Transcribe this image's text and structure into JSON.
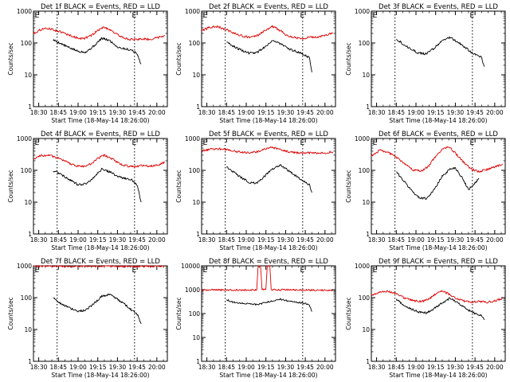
{
  "chart_data": [
    {
      "type": "line",
      "title": "Det 1f BLACK = Events, RED = LLD",
      "xlabel": "Start Time (18-May-14 18:26:00)",
      "ylabel": "Counts/sec",
      "x_ticks": [
        "18:30",
        "18:45",
        "19:00",
        "19:15",
        "19:30",
        "19:45",
        "20:00"
      ],
      "y_ticks": [
        "1",
        "10",
        "100",
        "1000"
      ],
      "ylim": [
        1,
        1000
      ],
      "y_scale": "log",
      "markers": [
        "E",
        "E"
      ],
      "series": [
        {
          "color": "#000000",
          "x": [
            "18:41",
            "18:46",
            "18:52",
            "19:00",
            "19:06",
            "19:12",
            "19:18",
            "19:24",
            "19:30",
            "19:36",
            "19:41",
            "19:45",
            "19:48"
          ],
          "y": [
            125,
            100,
            75,
            55,
            52,
            80,
            140,
            120,
            75,
            65,
            60,
            45,
            22
          ]
        },
        {
          "color": "#dd0000",
          "x": [
            "18:26",
            "18:32",
            "18:38",
            "18:45",
            "18:52",
            "18:58",
            "19:04",
            "19:10",
            "19:15",
            "19:20",
            "19:25",
            "19:30",
            "19:36",
            "19:42",
            "19:48",
            "19:55",
            "20:01",
            "20:06"
          ],
          "y": [
            200,
            270,
            285,
            235,
            185,
            150,
            135,
            170,
            250,
            315,
            255,
            180,
            140,
            125,
            135,
            130,
            150,
            175
          ]
        }
      ]
    },
    {
      "type": "line",
      "title": "Det 2f BLACK = Events, RED = LLD",
      "xlabel": "Start Time (18-May-14 18:26:00)",
      "ylabel": "Counts/sec",
      "x_ticks": [
        "18:30",
        "18:45",
        "19:00",
        "19:15",
        "19:30",
        "19:45",
        "20:00"
      ],
      "y_ticks": [
        "1",
        "10",
        "100",
        "1000"
      ],
      "ylim": [
        1,
        1000
      ],
      "y_scale": "log",
      "markers": [
        "E",
        "E"
      ],
      "series": [
        {
          "color": "#000000",
          "x": [
            "18:45",
            "18:50",
            "18:56",
            "19:02",
            "19:08",
            "19:14",
            "19:20",
            "19:26",
            "19:32",
            "19:38",
            "19:43",
            "19:48",
            "19:50"
          ],
          "y": [
            110,
            80,
            60,
            48,
            50,
            75,
            120,
            95,
            65,
            55,
            45,
            35,
            12
          ]
        },
        {
          "color": "#dd0000",
          "x": [
            "18:26",
            "18:32",
            "18:38",
            "18:45",
            "18:52",
            "18:58",
            "19:04",
            "19:10",
            "19:15",
            "19:20",
            "19:25",
            "19:30",
            "19:36",
            "19:42",
            "19:48",
            "19:55",
            "20:01",
            "20:06"
          ],
          "y": [
            240,
            310,
            325,
            260,
            195,
            160,
            150,
            180,
            260,
            330,
            260,
            185,
            150,
            140,
            150,
            155,
            175,
            210
          ]
        }
      ]
    },
    {
      "type": "line",
      "title": "Det 3f BLACK = Events, RED = LLD",
      "xlabel": "Start Time (18-May-14 18:26:00)",
      "ylabel": "Counts/sec",
      "x_ticks": [
        "18:30",
        "18:45",
        "19:00",
        "19:15",
        "19:30",
        "19:45",
        "20:00"
      ],
      "y_ticks": [
        "1",
        "10",
        "100",
        "1000"
      ],
      "ylim": [
        1,
        1000
      ],
      "y_scale": "log",
      "markers": [
        "E",
        "E"
      ],
      "series": [
        {
          "color": "#000000",
          "x": [
            "18:45",
            "18:50",
            "18:56",
            "19:02",
            "19:08",
            "19:14",
            "19:20",
            "19:26",
            "19:32",
            "19:38",
            "19:44",
            "19:50",
            "19:52"
          ],
          "y": [
            135,
            95,
            65,
            48,
            45,
            70,
            120,
            150,
            105,
            70,
            45,
            35,
            18
          ]
        }
      ]
    },
    {
      "type": "line",
      "title": "Det 4f BLACK = Events, RED = LLD",
      "xlabel": "Start Time (18-May-14 18:26:00)",
      "ylabel": "Counts/sec",
      "x_ticks": [
        "18:30",
        "18:45",
        "19:00",
        "19:15",
        "19:30",
        "19:45",
        "20:00"
      ],
      "y_ticks": [
        "1",
        "10",
        "100",
        "1000"
      ],
      "ylim": [
        1,
        1000
      ],
      "y_scale": "log",
      "markers": [
        "E",
        "E"
      ],
      "series": [
        {
          "color": "#000000",
          "x": [
            "18:41",
            "18:46",
            "18:52",
            "19:00",
            "19:06",
            "19:12",
            "19:18",
            "19:24",
            "19:30",
            "19:36",
            "19:41",
            "19:45",
            "19:48"
          ],
          "y": [
            95,
            80,
            55,
            35,
            38,
            60,
            110,
            90,
            65,
            55,
            50,
            35,
            10
          ]
        },
        {
          "color": "#dd0000",
          "x": [
            "18:26",
            "18:32",
            "18:38",
            "18:45",
            "18:52",
            "18:58",
            "19:04",
            "19:10",
            "19:15",
            "19:20",
            "19:25",
            "19:30",
            "19:36",
            "19:42",
            "19:48",
            "19:55",
            "20:01",
            "20:06"
          ],
          "y": [
            230,
            290,
            300,
            235,
            175,
            140,
            130,
            160,
            240,
            300,
            240,
            175,
            140,
            130,
            140,
            135,
            150,
            175
          ]
        }
      ]
    },
    {
      "type": "line",
      "title": "Det 5f BLACK = Events, RED = LLD",
      "xlabel": "Start Time (18-May-14 18:26:00)",
      "ylabel": "Counts/sec",
      "x_ticks": [
        "18:30",
        "18:45",
        "19:00",
        "19:15",
        "19:30",
        "19:45",
        "20:00"
      ],
      "y_ticks": [
        "1",
        "10",
        "100",
        "1000"
      ],
      "ylim": [
        1,
        1000
      ],
      "y_scale": "log",
      "markers": [
        "E",
        "E"
      ],
      "series": [
        {
          "color": "#000000",
          "x": [
            "18:45",
            "18:50",
            "18:56",
            "19:02",
            "19:08",
            "19:14",
            "19:20",
            "19:26",
            "19:32",
            "19:38",
            "19:44",
            "19:48",
            "19:50"
          ],
          "y": [
            125,
            90,
            60,
            42,
            40,
            65,
            110,
            150,
            100,
            65,
            45,
            35,
            20
          ]
        },
        {
          "color": "#dd0000",
          "x": [
            "18:26",
            "18:32",
            "18:38",
            "18:45",
            "18:52",
            "18:58",
            "19:04",
            "19:10",
            "19:15",
            "19:20",
            "19:25",
            "19:30",
            "19:36",
            "19:42",
            "19:48",
            "19:55",
            "20:01",
            "20:06"
          ],
          "y": [
            400,
            460,
            480,
            450,
            390,
            360,
            360,
            400,
            480,
            520,
            470,
            400,
            360,
            345,
            350,
            345,
            355,
            380
          ]
        }
      ]
    },
    {
      "type": "line",
      "title": "Det 6f BLACK = Events, RED = LLD",
      "xlabel": "Start Time (18-May-14 18:26:00)",
      "ylabel": "Counts/sec",
      "x_ticks": [
        "18:30",
        "18:45",
        "19:00",
        "19:15",
        "19:30",
        "19:45",
        "20:00"
      ],
      "y_ticks": [
        "1",
        "10",
        "100",
        "1000"
      ],
      "ylim": [
        1,
        1000
      ],
      "y_scale": "log",
      "markers": [
        "E",
        "E"
      ],
      "series": [
        {
          "color": "#000000",
          "x": [
            "18:45",
            "18:50",
            "18:56",
            "19:02",
            "19:08",
            "19:14",
            "19:20",
            "19:26",
            "19:30",
            "19:35",
            "19:40",
            "19:45",
            "19:48"
          ],
          "y": [
            90,
            50,
            25,
            14,
            13,
            25,
            65,
            110,
            120,
            60,
            25,
            40,
            55
          ]
        },
        {
          "color": "#dd0000",
          "x": [
            "18:26",
            "18:32",
            "18:38",
            "18:45",
            "18:52",
            "18:58",
            "19:04",
            "19:10",
            "19:15",
            "19:20",
            "19:25",
            "19:30",
            "19:36",
            "19:42",
            "19:48",
            "19:55",
            "20:01",
            "20:06"
          ],
          "y": [
            280,
            420,
            380,
            260,
            150,
            100,
            95,
            140,
            280,
            450,
            550,
            350,
            180,
            110,
            90,
            110,
            130,
            160
          ]
        }
      ]
    },
    {
      "type": "line",
      "title": "Det 7f BLACK = Events, RED = LLD",
      "xlabel": "Start Time (18-May-14 18:26:00)",
      "ylabel": "Counts/sec",
      "x_ticks": [
        "18:30",
        "18:45",
        "19:00",
        "19:15",
        "19:30",
        "19:45",
        "20:00"
      ],
      "y_ticks": [
        "1",
        "10",
        "100",
        "1000"
      ],
      "ylim": [
        1,
        1000
      ],
      "y_scale": "log",
      "markers": [
        "E",
        "E"
      ],
      "series": [
        {
          "color": "#000000",
          "x": [
            "18:41",
            "18:46",
            "18:52",
            "19:00",
            "19:06",
            "19:12",
            "19:18",
            "19:24",
            "19:30",
            "19:36",
            "19:41",
            "19:45",
            "19:48"
          ],
          "y": [
            100,
            70,
            50,
            38,
            40,
            65,
            110,
            130,
            90,
            60,
            40,
            30,
            15
          ]
        },
        {
          "color": "#dd0000",
          "x": [
            "18:26",
            "18:32",
            "18:38",
            "18:45",
            "18:52",
            "18:58",
            "19:04",
            "19:10",
            "19:15",
            "19:20",
            "19:25",
            "19:30",
            "19:36",
            "19:42",
            "19:48",
            "19:55",
            "20:01",
            "20:06"
          ],
          "y": [
            980,
            1000,
            990,
            985,
            970,
            960,
            970,
            990,
            1000,
            1000,
            990,
            980,
            970,
            965,
            975,
            980,
            985,
            990
          ]
        }
      ]
    },
    {
      "type": "line",
      "title": "Det 8f BLACK = Events, RED = LLD",
      "xlabel": "Start Time (18-May-14 18:26:00)",
      "ylabel": "Counts/sec",
      "x_ticks": [
        "18:30",
        "18:45",
        "19:00",
        "19:15",
        "19:30",
        "19:45",
        "20:00"
      ],
      "y_ticks": [
        "1",
        "10",
        "100",
        "1000",
        "10000"
      ],
      "ylim": [
        1,
        10000
      ],
      "y_scale": "log",
      "markers": [
        "E",
        "E"
      ],
      "series": [
        {
          "color": "#000000",
          "x": [
            "18:45",
            "18:50",
            "18:56",
            "19:02",
            "19:08",
            "19:14",
            "19:20",
            "19:26",
            "19:32",
            "19:38",
            "19:44",
            "19:48",
            "19:50"
          ],
          "y": [
            380,
            300,
            270,
            260,
            240,
            280,
            340,
            400,
            330,
            300,
            270,
            240,
            120
          ]
        },
        {
          "color": "#dd0000",
          "x": [
            "18:26",
            "18:32",
            "18:38",
            "18:45",
            "18:52",
            "18:58",
            "19:04",
            "19:08",
            "19:09",
            "19:11",
            "19:12",
            "19:15",
            "19:16",
            "19:18",
            "19:19",
            "19:25",
            "19:32",
            "19:40",
            "19:48",
            "19:56",
            "20:06"
          ],
          "y": [
            950,
            1000,
            980,
            970,
            960,
            960,
            990,
            1000,
            9500,
            9500,
            1000,
            1000,
            9500,
            9500,
            1000,
            980,
            990,
            980,
            970,
            960,
            950
          ]
        }
      ]
    },
    {
      "type": "line",
      "title": "Det 9f BLACK = Events, RED = LLD",
      "xlabel": "Start Time (18-May-14 18:26:00)",
      "ylabel": "Counts/sec",
      "x_ticks": [
        "18:30",
        "18:45",
        "19:00",
        "19:15",
        "19:30",
        "19:45",
        "20:00"
      ],
      "y_ticks": [
        "1",
        "10",
        "100",
        "1000"
      ],
      "ylim": [
        1,
        1000
      ],
      "y_scale": "log",
      "markers": [
        "E",
        "E"
      ],
      "series": [
        {
          "color": "#000000",
          "x": [
            "18:45",
            "18:50",
            "18:56",
            "19:02",
            "19:08",
            "19:14",
            "19:20",
            "19:26",
            "19:32",
            "19:38",
            "19:44",
            "19:50",
            "19:52"
          ],
          "y": [
            90,
            60,
            45,
            35,
            33,
            45,
            70,
            95,
            70,
            45,
            33,
            28,
            20
          ]
        },
        {
          "color": "#dd0000",
          "x": [
            "18:26",
            "18:32",
            "18:38",
            "18:45",
            "18:52",
            "18:58",
            "19:04",
            "19:10",
            "19:15",
            "19:20",
            "19:25",
            "19:30",
            "19:36",
            "19:42",
            "19:48",
            "19:55",
            "20:01",
            "20:06"
          ],
          "y": [
            120,
            150,
            160,
            130,
            95,
            80,
            75,
            90,
            130,
            165,
            130,
            95,
            80,
            72,
            75,
            72,
            80,
            95
          ]
        }
      ]
    }
  ]
}
